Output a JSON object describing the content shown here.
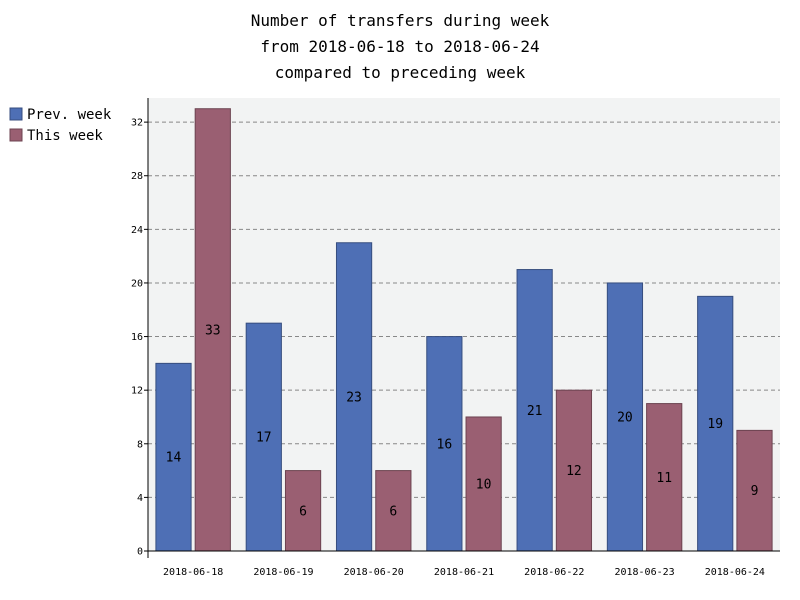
{
  "chart_data": {
    "type": "bar",
    "title": [
      "Number of transfers during week",
      "from 2018-06-18 to 2018-06-24",
      "compared to preceding week"
    ],
    "categories": [
      "2018-06-18",
      "2018-06-19",
      "2018-06-20",
      "2018-06-21",
      "2018-06-22",
      "2018-06-23",
      "2018-06-24"
    ],
    "series": [
      {
        "name": "Prev. week",
        "values": [
          14,
          17,
          23,
          16,
          21,
          20,
          19
        ],
        "color": "#4e6fb5"
      },
      {
        "name": "This week",
        "values": [
          33,
          6,
          6,
          10,
          12,
          11,
          9
        ],
        "color": "#9a5f72"
      }
    ],
    "ylim": [
      0,
      33.8
    ],
    "yticks": [
      0,
      4,
      8,
      12,
      16,
      20,
      24,
      28,
      32
    ],
    "grid": true,
    "legend": "top-left",
    "plot_background": "#f2f3f3"
  }
}
